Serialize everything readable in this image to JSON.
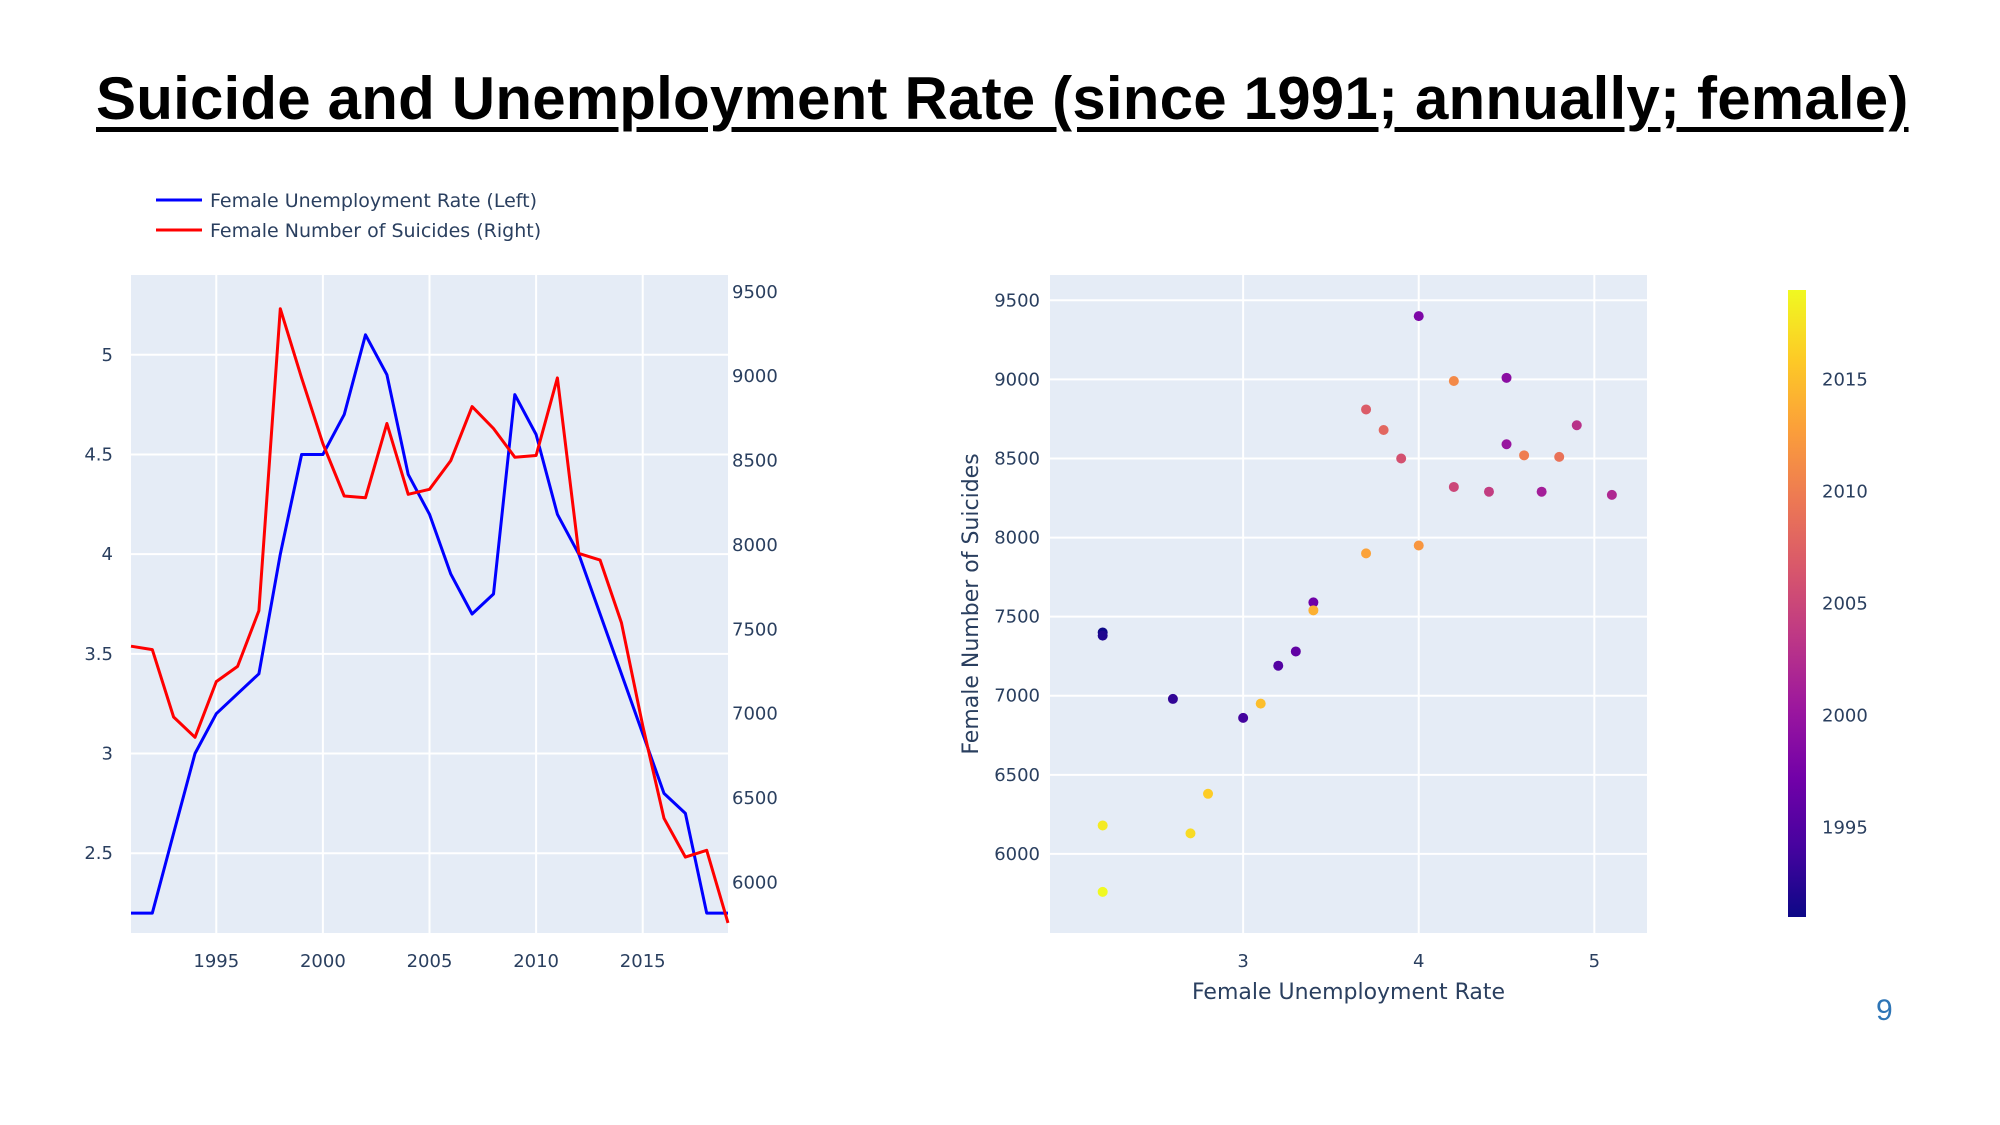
{
  "slide": {
    "title": "Suicide and Unemployment Rate (since 1991; annually; female)",
    "page_number": "9"
  },
  "chart_data": [
    {
      "type": "line",
      "x": [
        1991,
        1992,
        1993,
        1994,
        1995,
        1996,
        1997,
        1998,
        1999,
        2000,
        2001,
        2002,
        2003,
        2004,
        2005,
        2006,
        2007,
        2008,
        2009,
        2010,
        2011,
        2012,
        2013,
        2014,
        2015,
        2016,
        2017,
        2018,
        2019
      ],
      "series": [
        {
          "name": "Female Unemployment Rate (Left)",
          "axis": "left",
          "color": "#0000ff",
          "values": [
            2.2,
            2.2,
            2.6,
            3.0,
            3.2,
            3.3,
            3.4,
            4.0,
            4.5,
            4.5,
            4.7,
            5.1,
            4.9,
            4.4,
            4.2,
            3.9,
            3.7,
            3.8,
            4.8,
            4.6,
            4.2,
            4.0,
            3.7,
            3.4,
            3.1,
            2.8,
            2.7,
            2.2,
            2.2
          ]
        },
        {
          "name": "Female Number of Suicides (Right)",
          "axis": "right",
          "color": "#ff0000",
          "values": [
            7400,
            7380,
            6980,
            6860,
            7190,
            7280,
            7610,
            9400,
            8990,
            8600,
            8290,
            8280,
            8720,
            8300,
            8330,
            8500,
            8820,
            8690,
            8520,
            8530,
            8990,
            7950,
            7910,
            7540,
            6930,
            6380,
            6150,
            6190,
            5760
          ]
        }
      ],
      "xlim": [
        1991,
        2019
      ],
      "xticks": [
        1995,
        2000,
        2005,
        2010,
        2015
      ],
      "ylim_left": [
        2.1,
        5.4
      ],
      "yticks_left": [
        2.5,
        3,
        3.5,
        4,
        4.5,
        5
      ],
      "ylim_right": [
        5700,
        9600
      ],
      "yticks_right": [
        6000,
        6500,
        7000,
        7500,
        8000,
        8500,
        9000,
        9500
      ],
      "legend": "top-left",
      "grid": true
    },
    {
      "type": "scatter",
      "xlabel": "Female Unemployment Rate",
      "ylabel": "Female Number of Suicides",
      "xlim": [
        1.9,
        5.3
      ],
      "ylim": [
        5500,
        9660
      ],
      "xticks": [
        3,
        4,
        5
      ],
      "yticks": [
        6000,
        6500,
        7000,
        7500,
        8000,
        8500,
        9000,
        9500
      ],
      "grid": true,
      "colorbar": {
        "colorscale": "plasma",
        "range": [
          1991,
          2019
        ],
        "ticks": [
          1995,
          2000,
          2005,
          2010,
          2015
        ]
      },
      "points": [
        {
          "x": 2.2,
          "y": 7400,
          "year": 1991
        },
        {
          "x": 2.2,
          "y": 7380,
          "year": 1992
        },
        {
          "x": 2.6,
          "y": 6980,
          "year": 1993
        },
        {
          "x": 3.0,
          "y": 6860,
          "year": 1994
        },
        {
          "x": 3.2,
          "y": 7190,
          "year": 1995
        },
        {
          "x": 3.3,
          "y": 7280,
          "year": 1996
        },
        {
          "x": 3.4,
          "y": 7590,
          "year": 1997
        },
        {
          "x": 4.0,
          "y": 9400,
          "year": 1998
        },
        {
          "x": 4.5,
          "y": 9010,
          "year": 1999
        },
        {
          "x": 4.5,
          "y": 8590,
          "year": 2000
        },
        {
          "x": 4.7,
          "y": 8290,
          "year": 2001
        },
        {
          "x": 5.1,
          "y": 8270,
          "year": 2002
        },
        {
          "x": 4.9,
          "y": 8710,
          "year": 2003
        },
        {
          "x": 4.4,
          "y": 8290,
          "year": 2004
        },
        {
          "x": 4.2,
          "y": 8320,
          "year": 2005
        },
        {
          "x": 3.9,
          "y": 8500,
          "year": 2006
        },
        {
          "x": 3.7,
          "y": 8810,
          "year": 2007
        },
        {
          "x": 3.8,
          "y": 8680,
          "year": 2008
        },
        {
          "x": 4.8,
          "y": 8510,
          "year": 2009
        },
        {
          "x": 4.6,
          "y": 8520,
          "year": 2010
        },
        {
          "x": 4.2,
          "y": 8990,
          "year": 2011
        },
        {
          "x": 4.0,
          "y": 7950,
          "year": 2012
        },
        {
          "x": 3.7,
          "y": 7900,
          "year": 2013
        },
        {
          "x": 3.4,
          "y": 7540,
          "year": 2014
        },
        {
          "x": 3.1,
          "y": 6950,
          "year": 2015
        },
        {
          "x": 2.8,
          "y": 6380,
          "year": 2016
        },
        {
          "x": 2.7,
          "y": 6130,
          "year": 2017
        },
        {
          "x": 2.2,
          "y": 6180,
          "year": 2018
        },
        {
          "x": 2.2,
          "y": 5760,
          "year": 2019
        }
      ]
    }
  ]
}
